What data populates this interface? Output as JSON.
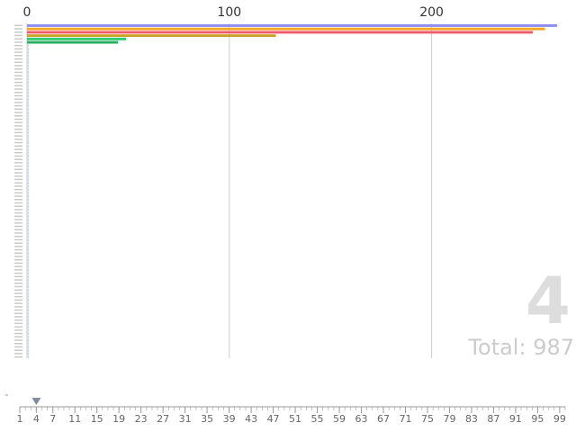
{
  "overlay": {
    "frame_label": "4",
    "total_label": "Total: 987"
  },
  "colors": {
    "grid": "#cccccc",
    "axis_text": "#333333",
    "slider_line": "#999999",
    "slider_handle": "#7f8c9d"
  },
  "chart_data": {
    "type": "bar",
    "orientation": "horizontal",
    "animated": true,
    "current_frame": 4,
    "xlim": [
      0,
      250
    ],
    "x_ticks": [
      0,
      100,
      200
    ],
    "grid": true,
    "series_colors": [
      "#8b8ff0",
      "#f5a623",
      "#f05a6e",
      "#c9a227",
      "#2ecc71",
      "#27ae60"
    ],
    "bars_with_visible_values": [
      262,
      256,
      250,
      123,
      49,
      45
    ],
    "bars_total_count": 100,
    "remaining_bars_value_approx": 1
  },
  "slider": {
    "ticks": [
      "1",
      "4",
      "7",
      "11",
      "15",
      "19",
      "23",
      "27",
      "31",
      "35",
      "39",
      "43",
      "47",
      "51",
      "55",
      "59",
      "63",
      "67",
      "71",
      "75",
      "79",
      "83",
      "87",
      "91",
      "95",
      "99"
    ],
    "handle_value": 4,
    "min": 1,
    "max": 100
  }
}
